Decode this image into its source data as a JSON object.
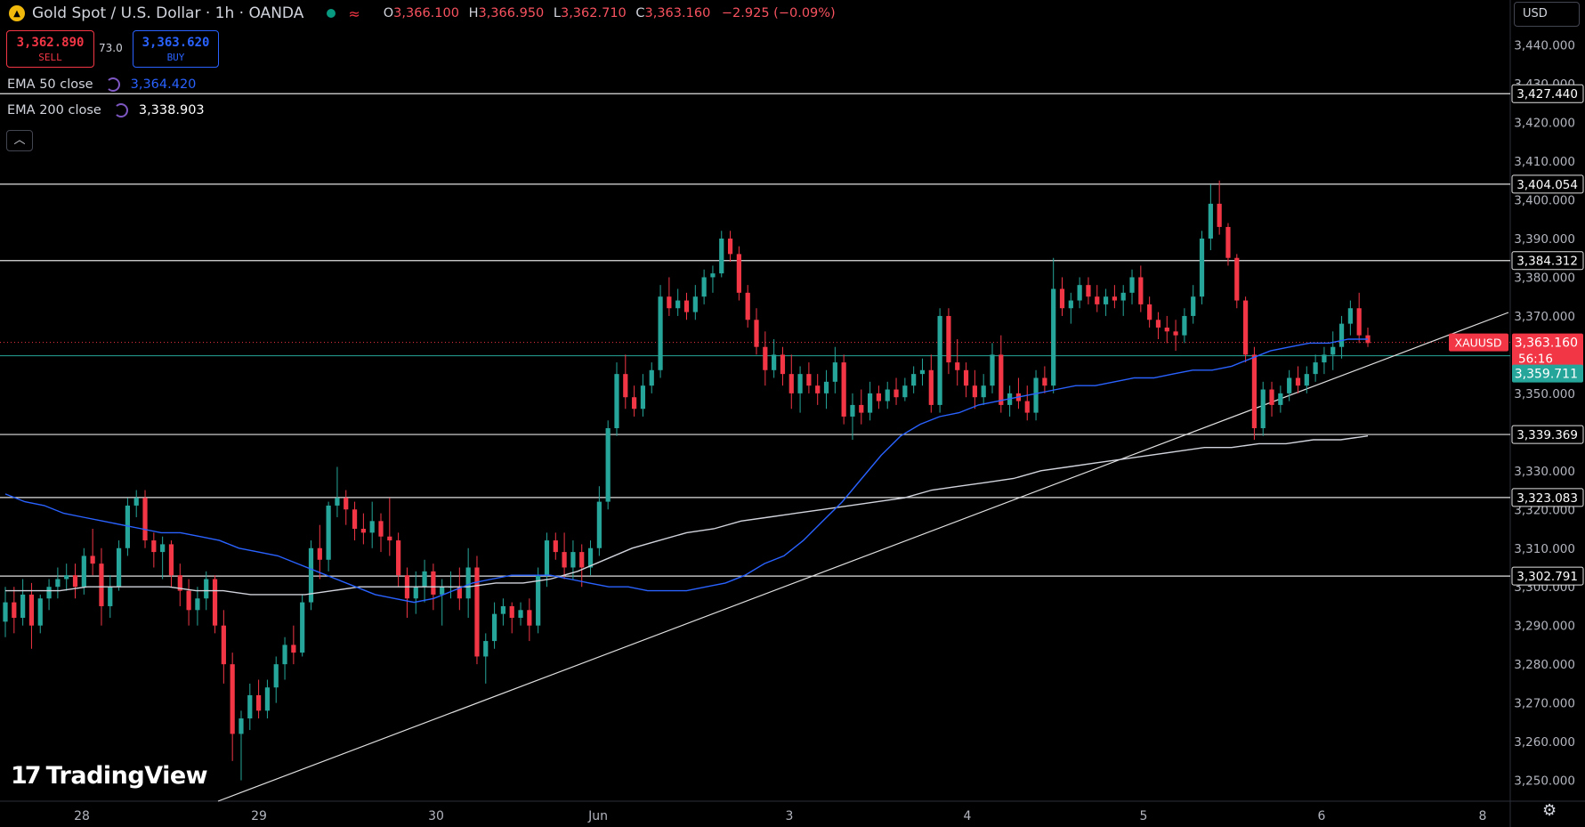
{
  "header": {
    "symbol_title": "Gold Spot / U.S. Dollar · 1h · OANDA",
    "open_label": "O",
    "open": "3,366.100",
    "high_label": "H",
    "high": "3,366.950",
    "low_label": "L",
    "low": "3,362.710",
    "close_label": "C",
    "close": "3,363.160",
    "change": "−2.925 (−0.09%)"
  },
  "trade": {
    "sell_price": "3,362.890",
    "sell_label": "SELL",
    "spread": "73.0",
    "buy_price": "3,363.620",
    "buy_label": "BUY"
  },
  "indicators": [
    {
      "name": "EMA 50 close",
      "value": "3,364.420",
      "color": "#2962ff"
    },
    {
      "name": "EMA 200 close",
      "value": "3,338.903",
      "color": "#d1d4dc"
    }
  ],
  "currency_selector": "USD",
  "brand": "TradingView",
  "icons": {
    "logo": "gold-coin-icon",
    "market_status": "market-open-dot-icon",
    "refresh": "cycle-icon",
    "collapse": "chevron-up-icon",
    "settings": "gear-icon"
  },
  "colors": {
    "up": "#26a69a",
    "down": "#f23645",
    "ema50": "#2962ff",
    "ema200": "#d1d4dc",
    "bg": "#000000"
  },
  "chart_data": {
    "type": "candlestick",
    "title": "Gold Spot / U.S. Dollar · 1h · OANDA",
    "ylim": [
      3243,
      3447
    ],
    "y_ticks": [
      "3,250.000",
      "3,260.000",
      "3,270.000",
      "3,280.000",
      "3,290.000",
      "3,300.000",
      "3,310.000",
      "3,320.000",
      "3,330.000",
      "3,340.000",
      "3,350.000",
      "3,360.000",
      "3,370.000",
      "3,380.000",
      "3,390.000",
      "3,400.000",
      "3,410.000",
      "3,420.000",
      "3,430.000",
      "3,440.000"
    ],
    "x_ticks": [
      "28",
      "29",
      "30",
      "Jun",
      "3",
      "4",
      "5",
      "6",
      "8"
    ],
    "horizontal_levels": [
      "3,427.440",
      "3,404.054",
      "3,384.312",
      "3,339.369",
      "3,323.083",
      "3,302.791"
    ],
    "current_price": {
      "symbol": "XAUUSD",
      "price": "3,363.160",
      "countdown": "56:16"
    },
    "green_level": "3,359.711",
    "candles": [
      [
        3291,
        3300,
        3287,
        3296
      ],
      [
        3296,
        3300,
        3288,
        3292
      ],
      [
        3292,
        3302,
        3290,
        3298
      ],
      [
        3298,
        3301,
        3284,
        3290
      ],
      [
        3290,
        3298,
        3288,
        3297
      ],
      [
        3297,
        3302,
        3294,
        3300
      ],
      [
        3300,
        3305,
        3297,
        3302
      ],
      [
        3302,
        3306,
        3299,
        3303
      ],
      [
        3303,
        3306,
        3297,
        3300
      ],
      [
        3300,
        3310,
        3298,
        3308
      ],
      [
        3308,
        3315,
        3303,
        3306
      ],
      [
        3306,
        3310,
        3290,
        3295
      ],
      [
        3295,
        3303,
        3292,
        3300
      ],
      [
        3300,
        3312,
        3299,
        3310
      ],
      [
        3310,
        3323,
        3308,
        3321
      ],
      [
        3321,
        3325,
        3318,
        3323
      ],
      [
        3323,
        3325,
        3310,
        3312
      ],
      [
        3312,
        3314,
        3305,
        3309
      ],
      [
        3309,
        3313,
        3302,
        3311
      ],
      [
        3311,
        3312,
        3300,
        3303
      ],
      [
        3303,
        3306,
        3295,
        3299
      ],
      [
        3299,
        3302,
        3290,
        3294
      ],
      [
        3294,
        3300,
        3290,
        3297
      ],
      [
        3297,
        3304,
        3294,
        3302
      ],
      [
        3302,
        3303,
        3288,
        3290
      ],
      [
        3290,
        3294,
        3275,
        3280
      ],
      [
        3280,
        3283,
        3255,
        3262
      ],
      [
        3262,
        3268,
        3250,
        3266
      ],
      [
        3266,
        3275,
        3263,
        3272
      ],
      [
        3272,
        3276,
        3266,
        3268
      ],
      [
        3268,
        3276,
        3266,
        3274
      ],
      [
        3274,
        3282,
        3270,
        3280
      ],
      [
        3280,
        3287,
        3276,
        3285
      ],
      [
        3285,
        3290,
        3280,
        3283
      ],
      [
        3283,
        3298,
        3282,
        3296
      ],
      [
        3296,
        3312,
        3294,
        3310
      ],
      [
        3310,
        3316,
        3302,
        3307
      ],
      [
        3307,
        3322,
        3304,
        3321
      ],
      [
        3321,
        3331,
        3318,
        3323
      ],
      [
        3323,
        3325,
        3316,
        3320
      ],
      [
        3320,
        3322,
        3312,
        3315
      ],
      [
        3315,
        3319,
        3311,
        3314
      ],
      [
        3314,
        3322,
        3310,
        3317
      ],
      [
        3317,
        3319,
        3309,
        3313
      ],
      [
        3313,
        3323,
        3308,
        3312
      ],
      [
        3312,
        3314,
        3300,
        3303
      ],
      [
        3303,
        3305,
        3292,
        3297
      ],
      [
        3297,
        3304,
        3293,
        3300
      ],
      [
        3300,
        3307,
        3296,
        3304
      ],
      [
        3304,
        3306,
        3294,
        3298
      ],
      [
        3298,
        3302,
        3290,
        3300
      ],
      [
        3300,
        3304,
        3297,
        3300
      ],
      [
        3300,
        3305,
        3294,
        3297
      ],
      [
        3297,
        3310,
        3292,
        3305
      ],
      [
        3305,
        3308,
        3280,
        3282
      ],
      [
        3282,
        3288,
        3275,
        3286
      ],
      [
        3286,
        3296,
        3284,
        3293
      ],
      [
        3293,
        3297,
        3290,
        3295
      ],
      [
        3295,
        3296,
        3288,
        3292
      ],
      [
        3292,
        3296,
        3290,
        3294
      ],
      [
        3294,
        3297,
        3286,
        3290
      ],
      [
        3290,
        3305,
        3288,
        3303
      ],
      [
        3303,
        3314,
        3300,
        3312
      ],
      [
        3312,
        3314,
        3307,
        3309
      ],
      [
        3309,
        3314,
        3302,
        3305
      ],
      [
        3305,
        3312,
        3302,
        3309
      ],
      [
        3309,
        3311,
        3300,
        3305
      ],
      [
        3305,
        3312,
        3303,
        3310
      ],
      [
        3310,
        3326,
        3308,
        3322
      ],
      [
        3322,
        3343,
        3320,
        3341
      ],
      [
        3341,
        3358,
        3339,
        3355
      ],
      [
        3355,
        3360,
        3346,
        3349
      ],
      [
        3349,
        3352,
        3344,
        3346
      ],
      [
        3346,
        3355,
        3344,
        3352
      ],
      [
        3352,
        3358,
        3350,
        3356
      ],
      [
        3356,
        3378,
        3354,
        3375
      ],
      [
        3375,
        3380,
        3370,
        3372
      ],
      [
        3372,
        3377,
        3370,
        3374
      ],
      [
        3374,
        3376,
        3369,
        3371
      ],
      [
        3371,
        3378,
        3369,
        3375
      ],
      [
        3375,
        3382,
        3373,
        3380
      ],
      [
        3380,
        3383,
        3376,
        3381
      ],
      [
        3381,
        3392,
        3380,
        3390
      ],
      [
        3390,
        3392,
        3384,
        3386
      ],
      [
        3386,
        3388,
        3374,
        3376
      ],
      [
        3376,
        3378,
        3367,
        3369
      ],
      [
        3369,
        3372,
        3360,
        3362
      ],
      [
        3362,
        3366,
        3352,
        3356
      ],
      [
        3356,
        3364,
        3354,
        3360
      ],
      [
        3360,
        3362,
        3352,
        3355
      ],
      [
        3355,
        3360,
        3346,
        3350
      ],
      [
        3350,
        3357,
        3345,
        3355
      ],
      [
        3355,
        3358,
        3350,
        3352
      ],
      [
        3352,
        3355,
        3347,
        3350
      ],
      [
        3350,
        3356,
        3346,
        3353
      ],
      [
        3353,
        3362,
        3350,
        3358
      ],
      [
        3358,
        3360,
        3342,
        3344
      ],
      [
        3344,
        3350,
        3338,
        3347
      ],
      [
        3347,
        3351,
        3342,
        3345
      ],
      [
        3345,
        3353,
        3343,
        3350
      ],
      [
        3350,
        3352,
        3346,
        3348
      ],
      [
        3348,
        3353,
        3346,
        3351
      ],
      [
        3351,
        3354,
        3347,
        3349
      ],
      [
        3349,
        3354,
        3348,
        3352
      ],
      [
        3352,
        3357,
        3350,
        3355
      ],
      [
        3355,
        3359,
        3352,
        3356
      ],
      [
        3356,
        3360,
        3345,
        3347
      ],
      [
        3347,
        3372,
        3345,
        3370
      ],
      [
        3370,
        3372,
        3355,
        3358
      ],
      [
        3358,
        3364,
        3352,
        3356
      ],
      [
        3356,
        3358,
        3349,
        3352
      ],
      [
        3352,
        3356,
        3346,
        3349
      ],
      [
        3349,
        3355,
        3347,
        3352
      ],
      [
        3352,
        3363,
        3350,
        3360
      ],
      [
        3360,
        3365,
        3345,
        3347
      ],
      [
        3347,
        3352,
        3344,
        3350
      ],
      [
        3350,
        3354,
        3346,
        3348
      ],
      [
        3348,
        3352,
        3343,
        3345
      ],
      [
        3345,
        3356,
        3343,
        3354
      ],
      [
        3354,
        3357,
        3350,
        3352
      ],
      [
        3352,
        3385,
        3350,
        3377
      ],
      [
        3377,
        3380,
        3370,
        3372
      ],
      [
        3372,
        3376,
        3368,
        3374
      ],
      [
        3374,
        3380,
        3372,
        3378
      ],
      [
        3378,
        3380,
        3373,
        3375
      ],
      [
        3375,
        3378,
        3371,
        3373
      ],
      [
        3373,
        3377,
        3370,
        3375
      ],
      [
        3375,
        3378,
        3372,
        3374
      ],
      [
        3374,
        3378,
        3370,
        3376
      ],
      [
        3376,
        3382,
        3373,
        3380
      ],
      [
        3380,
        3383,
        3371,
        3373
      ],
      [
        3373,
        3375,
        3367,
        3369
      ],
      [
        3369,
        3371,
        3364,
        3367
      ],
      [
        3367,
        3370,
        3363,
        3366
      ],
      [
        3366,
        3369,
        3361,
        3365
      ],
      [
        3365,
        3372,
        3363,
        3370
      ],
      [
        3370,
        3378,
        3368,
        3375
      ],
      [
        3375,
        3392,
        3373,
        3390
      ],
      [
        3390,
        3404,
        3387,
        3399
      ],
      [
        3399,
        3405,
        3391,
        3393
      ],
      [
        3393,
        3394,
        3383,
        3385
      ],
      [
        3385,
        3386,
        3372,
        3374
      ],
      [
        3374,
        3375,
        3358,
        3360
      ],
      [
        3360,
        3362,
        3338,
        3341
      ],
      [
        3341,
        3353,
        3339,
        3351
      ],
      [
        3351,
        3353,
        3344,
        3347
      ],
      [
        3347,
        3352,
        3345,
        3350
      ],
      [
        3350,
        3356,
        3348,
        3354
      ],
      [
        3354,
        3357,
        3350,
        3352
      ],
      [
        3352,
        3357,
        3350,
        3355
      ],
      [
        3355,
        3360,
        3353,
        3358
      ],
      [
        3358,
        3362,
        3355,
        3360
      ],
      [
        3360,
        3366,
        3356,
        3362
      ],
      [
        3362,
        3370,
        3359,
        3368
      ],
      [
        3368,
        3374,
        3365,
        3372
      ],
      [
        3372,
        3376,
        3363,
        3365
      ],
      [
        3365,
        3367,
        3362,
        3363
      ]
    ],
    "ema50": [
      3324,
      3322,
      3321,
      3319,
      3318,
      3317,
      3316,
      3315,
      3314,
      3314,
      3313,
      3312,
      3310,
      3309,
      3308,
      3306,
      3304,
      3302,
      3300,
      3298,
      3297,
      3296,
      3297,
      3299,
      3301,
      3302,
      3303,
      3303,
      3303,
      3302,
      3301,
      3300,
      3300,
      3299,
      3299,
      3299,
      3300,
      3301,
      3303,
      3306,
      3308,
      3312,
      3317,
      3322,
      3328,
      3334,
      3339,
      3342,
      3344,
      3345,
      3347,
      3348,
      3349,
      3350,
      3351,
      3352,
      3352,
      3353,
      3354,
      3354,
      3355,
      3356,
      3356,
      3357,
      3359,
      3361,
      3362,
      3363,
      3363,
      3364,
      3364
    ],
    "ema200": [
      3299,
      3299,
      3299,
      3300,
      3300,
      3300,
      3300,
      3299,
      3299,
      3298,
      3298,
      3298,
      3299,
      3300,
      3300,
      3300,
      3300,
      3300,
      3301,
      3301,
      3302,
      3304,
      3307,
      3310,
      3312,
      3314,
      3315,
      3317,
      3318,
      3319,
      3320,
      3321,
      3322,
      3323,
      3325,
      3326,
      3327,
      3328,
      3330,
      3331,
      3332,
      3333,
      3334,
      3335,
      3336,
      3336,
      3337,
      3337,
      3338,
      3338,
      3339
    ]
  }
}
